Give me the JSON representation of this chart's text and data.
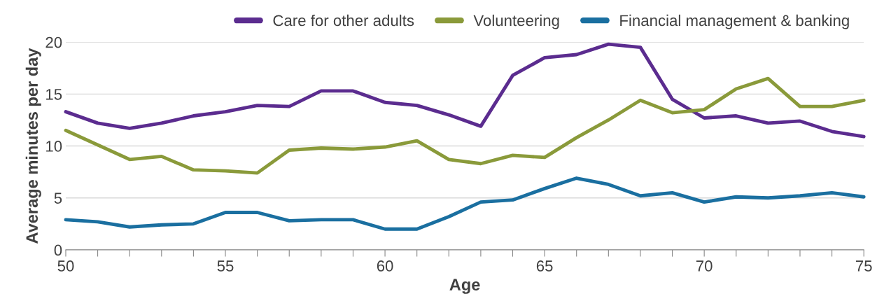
{
  "chart_data": {
    "type": "line",
    "xlabel": "Age",
    "ylabel": "Average minutes per day",
    "x": [
      50,
      51,
      52,
      53,
      54,
      55,
      56,
      57,
      58,
      59,
      60,
      61,
      62,
      63,
      64,
      65,
      66,
      67,
      68,
      69,
      70,
      71,
      72,
      73,
      74,
      75
    ],
    "series": [
      {
        "name": "Care for other adults",
        "color": "#5b2c8f",
        "values": [
          13.3,
          12.2,
          11.7,
          12.2,
          12.9,
          13.3,
          13.9,
          13.8,
          15.3,
          15.3,
          14.2,
          13.9,
          13.0,
          11.9,
          16.8,
          18.5,
          18.8,
          19.8,
          19.5,
          14.5,
          12.7,
          12.9,
          12.2,
          12.4,
          11.4,
          10.9
        ]
      },
      {
        "name": "Volunteering",
        "color": "#8a9a3a",
        "values": [
          11.5,
          10.1,
          8.7,
          9.0,
          7.7,
          7.6,
          7.4,
          9.6,
          9.8,
          9.7,
          9.9,
          10.5,
          8.7,
          8.3,
          9.1,
          8.9,
          10.8,
          12.5,
          14.4,
          13.2,
          13.5,
          15.5,
          16.5,
          13.8,
          13.8,
          14.4
        ]
      },
      {
        "name": "Financial management & banking",
        "color": "#1a6fa0",
        "values": [
          2.9,
          2.7,
          2.2,
          2.4,
          2.5,
          3.6,
          3.6,
          2.8,
          2.9,
          2.9,
          2.0,
          2.0,
          3.2,
          4.6,
          4.8,
          5.9,
          6.9,
          6.3,
          5.2,
          5.5,
          4.6,
          5.1,
          5.0,
          5.2,
          5.5,
          5.1
        ]
      }
    ],
    "xlim": [
      50,
      75
    ],
    "xticks": [
      50,
      {
        "value": 51,
        "label": null
      },
      {
        "value": 52,
        "label": null
      },
      {
        "value": 53,
        "label": null
      },
      {
        "value": 54,
        "label": null
      },
      55,
      {
        "value": 56,
        "label": null
      },
      {
        "value": 57,
        "label": null
      },
      {
        "value": 58,
        "label": null
      },
      {
        "value": 59,
        "label": null
      },
      60,
      {
        "value": 61,
        "label": null
      },
      {
        "value": 62,
        "label": null
      },
      {
        "value": 63,
        "label": null
      },
      {
        "value": 64,
        "label": null
      },
      65,
      {
        "value": 66,
        "label": null
      },
      {
        "value": 67,
        "label": null
      },
      {
        "value": 68,
        "label": null
      },
      {
        "value": 69,
        "label": null
      },
      70,
      {
        "value": 71,
        "label": null
      },
      {
        "value": 72,
        "label": null
      },
      {
        "value": 73,
        "label": null
      },
      {
        "value": 74,
        "label": null
      },
      75
    ],
    "ylim": [
      0,
      20
    ],
    "yticks": [
      0,
      5,
      10,
      15,
      20
    ],
    "grid": "y",
    "legend": "top",
    "marker": "none",
    "line_style": "solid"
  }
}
